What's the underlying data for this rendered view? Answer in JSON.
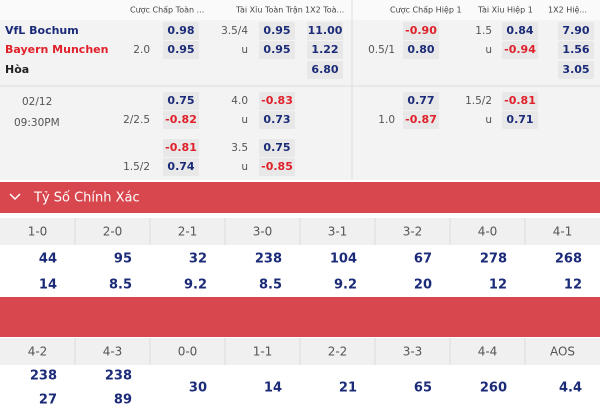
{
  "odds_table": {
    "headers": [
      "Cược Chấp Toàn ...",
      "Tài Xỉu Toàn Trận",
      "1X2 Toà...",
      "Cược Chấp Hiệp 1",
      "Tài Xỉu Hiệp 1",
      "1X2 Hiệ..."
    ],
    "date": "02/12",
    "time": "09:30PM",
    "rows": [
      [
        "VfL Bochum",
        null,
        "0.98",
        "3.5/4",
        "0.95",
        "11.00",
        null,
        "-0.90",
        "1.5",
        "0.84",
        "7.90"
      ],
      [
        "Bayern Munchen",
        "2.0",
        "0.95",
        "u",
        "0.95",
        "1.22",
        "0.5/1",
        "0.80",
        "u",
        "-0.94",
        "1.56"
      ],
      [
        "Hòa",
        null,
        null,
        null,
        null,
        "6.80",
        null,
        null,
        null,
        null,
        "3.05"
      ],
      [
        null,
        null,
        "0.75",
        "4.0",
        "-0.83",
        null,
        null,
        "0.77",
        "1.5/2",
        "-0.81",
        null
      ],
      [
        null,
        "2/2.5",
        "-0.82",
        "u",
        "0.73",
        null,
        "1.0",
        "-0.87",
        "u",
        "0.71",
        null
      ],
      [
        null,
        null,
        "-0.81",
        "3.5",
        "0.75",
        null,
        null,
        null,
        null,
        null,
        null
      ],
      [
        null,
        "1.5/2",
        "0.74",
        "u",
        "-0.85",
        null,
        null,
        null,
        null,
        null,
        null
      ]
    ]
  },
  "correct_score": {
    "title": "Tỷ Số Chính Xác",
    "groups": [
      {
        "scores": [
          "1-0",
          "2-0",
          "2-1",
          "3-0",
          "3-1",
          "3-2",
          "4-0",
          "4-1"
        ],
        "values": [
          [
            "44",
            "14"
          ],
          [
            "95",
            "8.5"
          ],
          [
            "32",
            "9.2"
          ],
          [
            "238",
            "8.5"
          ],
          [
            "104",
            "9.2"
          ],
          [
            "67",
            "20"
          ],
          [
            "278",
            "12"
          ],
          [
            "268",
            "12"
          ]
        ]
      },
      {
        "scores": [
          "4-2",
          "4-3",
          "0-0",
          "1-1",
          "2-2",
          "3-3",
          "4-4",
          "AOS"
        ],
        "values": [
          [
            "238",
            "27"
          ],
          [
            "238",
            "89"
          ],
          [
            "30"
          ],
          [
            "14"
          ],
          [
            "21"
          ],
          [
            "65"
          ],
          [
            "260"
          ],
          [
            "4.4"
          ]
        ]
      }
    ]
  }
}
